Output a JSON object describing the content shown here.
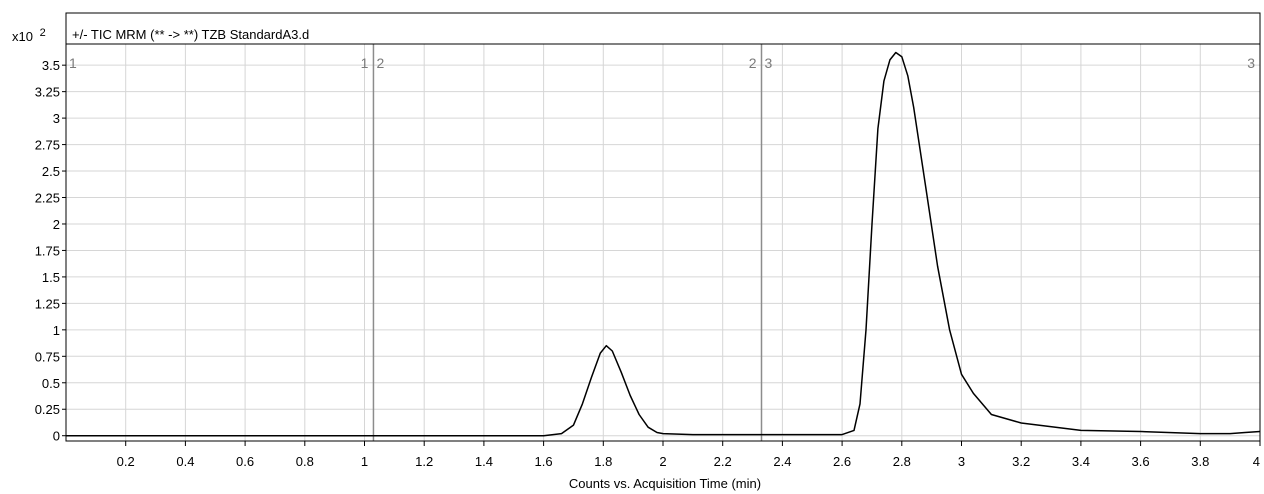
{
  "chart_data": {
    "type": "line",
    "title": "+/- TIC MRM (** -> **) TZB StandardA3.d",
    "xlabel": "Counts vs. Acquisition Time (min)",
    "ylabel": "",
    "y_scale_label": "x10",
    "y_scale_exponent": "2",
    "xlim": [
      0,
      4
    ],
    "ylim": [
      -0.05,
      3.7
    ],
    "x_ticks": [
      0.2,
      0.4,
      0.6,
      0.8,
      1,
      1.2,
      1.4,
      1.6,
      1.8,
      2,
      2.2,
      2.4,
      2.6,
      2.8,
      3,
      3.2,
      3.4,
      3.6,
      3.8,
      4
    ],
    "x_tick_labels": [
      "0.2",
      "0.4",
      "0.6",
      "0.8",
      "1",
      "1.2",
      "1.4",
      "1.6",
      "1.8",
      "2",
      "2.2",
      "2.4",
      "2.6",
      "2.8",
      "3",
      "3.2",
      "3.4",
      "3.6",
      "3.8",
      "4"
    ],
    "y_ticks": [
      0,
      0.25,
      0.5,
      0.75,
      1,
      1.25,
      1.5,
      1.75,
      2,
      2.25,
      2.5,
      2.75,
      3,
      3.25,
      3.5
    ],
    "y_tick_labels": [
      "0",
      "0.25",
      "0.5",
      "0.75",
      "1",
      "1.25",
      "1.5",
      "1.75",
      "2",
      "2.25",
      "2.5",
      "2.75",
      "3",
      "3.25",
      "3.5"
    ],
    "grid": true,
    "segment_boundaries": [
      1.03,
      2.33
    ],
    "segment_labels": [
      {
        "x": 0,
        "text": "1",
        "anchor": "start"
      },
      {
        "x": 1.03,
        "text": "1",
        "anchor": "end"
      },
      {
        "x": 1.03,
        "text": "2",
        "anchor": "start"
      },
      {
        "x": 2.33,
        "text": "2",
        "anchor": "end"
      },
      {
        "x": 2.33,
        "text": "3",
        "anchor": "start"
      },
      {
        "x": 4,
        "text": "3",
        "anchor": "end"
      }
    ],
    "series": [
      {
        "color": "#000000",
        "x": [
          0,
          1.6,
          1.66,
          1.7,
          1.73,
          1.76,
          1.79,
          1.81,
          1.83,
          1.86,
          1.89,
          1.92,
          1.95,
          1.98,
          2.0,
          2.1,
          2.3,
          2.6,
          2.64,
          2.66,
          2.68,
          2.7,
          2.72,
          2.74,
          2.76,
          2.78,
          2.8,
          2.82,
          2.84,
          2.88,
          2.92,
          2.96,
          3.0,
          3.04,
          3.1,
          3.2,
          3.4,
          3.6,
          3.8,
          3.9,
          3.95,
          4.0
        ],
        "y": [
          0,
          0,
          0.02,
          0.1,
          0.3,
          0.55,
          0.78,
          0.85,
          0.8,
          0.6,
          0.38,
          0.2,
          0.08,
          0.03,
          0.02,
          0.01,
          0.01,
          0.01,
          0.05,
          0.3,
          1.0,
          2.0,
          2.9,
          3.35,
          3.55,
          3.62,
          3.58,
          3.4,
          3.1,
          2.35,
          1.6,
          1.0,
          0.58,
          0.4,
          0.2,
          0.12,
          0.05,
          0.04,
          0.02,
          0.02,
          0.03,
          0.04
        ]
      }
    ]
  }
}
